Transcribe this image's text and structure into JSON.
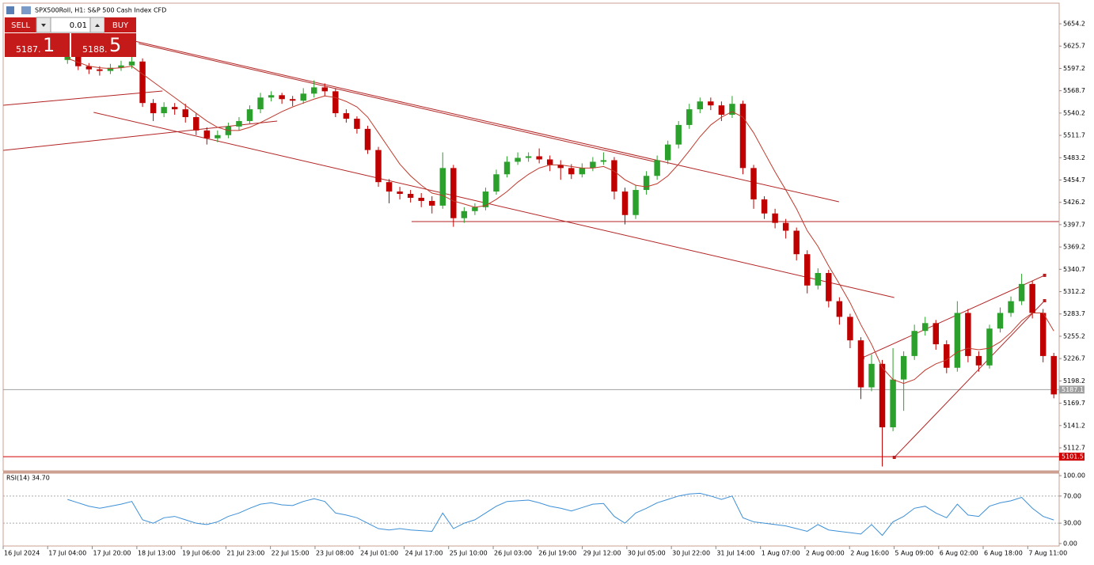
{
  "header": {
    "symbol": "SPX500Roll, H1:  S&P 500 Cash Index CFD"
  },
  "trade_panel": {
    "sell": "SELL",
    "buy": "BUY",
    "volume": "0.01",
    "sell_price": "5187.",
    "sell_pips": "1",
    "buy_price": "5188.",
    "buy_pips": "5"
  },
  "chart_data": [
    {
      "type": "candlestick",
      "xlim": [
        -6,
        92.5
      ],
      "ylim": [
        5083.4,
        5680.5
      ],
      "yticks": [
        5654.2,
        5625.7,
        5597.2,
        5568.7,
        5540.2,
        5511.7,
        5483.2,
        5454.7,
        5426.2,
        5397.7,
        5369.2,
        5340.7,
        5312.2,
        5283.7,
        5255.2,
        5226.7,
        5198.2,
        5169.7,
        5141.2,
        5112.7
      ],
      "xticks": [
        {
          "value": -6,
          "label": "16 Jul 2024"
        },
        {
          "value": -1.85,
          "label": "17 Jul 04:00"
        },
        {
          "value": 2.31,
          "label": "17 Jul 20:00"
        },
        {
          "value": 6.47,
          "label": "18 Jul 13:00"
        },
        {
          "value": 10.62,
          "label": "19 Jul 06:00"
        },
        {
          "value": 14.78,
          "label": "21 Jul 23:00"
        },
        {
          "value": 18.93,
          "label": "22 Jul 15:00"
        },
        {
          "value": 23.09,
          "label": "23 Jul 08:00"
        },
        {
          "value": 27.24,
          "label": "24 Jul 01:00"
        },
        {
          "value": 31.4,
          "label": "24 Jul 17:00"
        },
        {
          "value": 35.55,
          "label": "25 Jul 10:00"
        },
        {
          "value": 39.71,
          "label": "26 Jul 03:00"
        },
        {
          "value": 43.86,
          "label": "26 Jul 19:00"
        },
        {
          "value": 48.02,
          "label": "29 Jul 12:00"
        },
        {
          "value": 52.17,
          "label": "30 Jul 05:00"
        },
        {
          "value": 56.33,
          "label": "30 Jul 22:00"
        },
        {
          "value": 60.48,
          "label": "31 Jul 14:00"
        },
        {
          "value": 64.64,
          "label": "1 Aug 07:00"
        },
        {
          "value": 68.79,
          "label": "2 Aug 00:00"
        },
        {
          "value": 72.95,
          "label": "2 Aug 16:00"
        },
        {
          "value": 77.1,
          "label": "5 Aug 09:00"
        },
        {
          "value": 81.26,
          "label": "6 Aug 02:00"
        },
        {
          "value": 85.41,
          "label": "6 Aug 18:00"
        },
        {
          "value": 89.57,
          "label": "7 Aug 11:00"
        }
      ],
      "up_color": "#2ca02c",
      "down_color": "#c00000",
      "open": [
        5608,
        5612,
        5600,
        5596,
        5594,
        5598,
        5601,
        5606,
        5553,
        5540,
        5548,
        5545,
        5535,
        5518,
        5508,
        5512,
        5523,
        5530,
        5545,
        5560,
        5563,
        5558,
        5556,
        5565,
        5573,
        5568,
        5540,
        5533,
        5520,
        5493,
        5452,
        5440,
        5437,
        5432,
        5428,
        5422,
        5470,
        5406,
        5415,
        5420,
        5440,
        5462,
        5478,
        5483,
        5485,
        5481,
        5474,
        5470,
        5462,
        5470,
        5478,
        5480,
        5440,
        5410,
        5442,
        5460,
        5480,
        5500,
        5525,
        5545,
        5555,
        5550,
        5538,
        5552,
        5470,
        5430,
        5412,
        5400,
        5390,
        5360,
        5320,
        5336,
        5300,
        5280,
        5250,
        5190,
        5220,
        5139,
        5200,
        5230,
        5262,
        5272,
        5245,
        5215,
        5285,
        5230,
        5218,
        5265,
        5285,
        5300,
        5322,
        5285,
        5230
      ],
      "high": [
        5620,
        5616,
        5604,
        5600,
        5603,
        5607,
        5615,
        5610,
        5558,
        5554,
        5553,
        5552,
        5540,
        5522,
        5518,
        5528,
        5535,
        5550,
        5566,
        5568,
        5566,
        5562,
        5572,
        5582,
        5578,
        5572,
        5545,
        5536,
        5524,
        5497,
        5456,
        5446,
        5442,
        5438,
        5434,
        5490,
        5474,
        5420,
        5425,
        5445,
        5468,
        5485,
        5490,
        5490,
        5495,
        5486,
        5480,
        5475,
        5476,
        5484,
        5490,
        5484,
        5445,
        5448,
        5466,
        5486,
        5505,
        5530,
        5552,
        5560,
        5560,
        5555,
        5562,
        5556,
        5474,
        5434,
        5418,
        5405,
        5394,
        5365,
        5342,
        5340,
        5305,
        5284,
        5254,
        5232,
        5225,
        5240,
        5236,
        5270,
        5280,
        5276,
        5250,
        5300,
        5290,
        5236,
        5270,
        5292,
        5306,
        5335,
        5326,
        5290,
        5234
      ],
      "low": [
        5603,
        5595,
        5590,
        5588,
        5590,
        5594,
        5597,
        5548,
        5530,
        5535,
        5538,
        5528,
        5512,
        5500,
        5503,
        5508,
        5518,
        5526,
        5540,
        5555,
        5552,
        5549,
        5552,
        5560,
        5562,
        5535,
        5528,
        5514,
        5488,
        5446,
        5425,
        5430,
        5426,
        5420,
        5412,
        5418,
        5395,
        5400,
        5410,
        5416,
        5436,
        5458,
        5474,
        5478,
        5476,
        5466,
        5455,
        5456,
        5458,
        5466,
        5474,
        5430,
        5398,
        5405,
        5436,
        5455,
        5475,
        5495,
        5520,
        5540,
        5544,
        5530,
        5534,
        5462,
        5418,
        5405,
        5393,
        5380,
        5352,
        5310,
        5315,
        5292,
        5270,
        5240,
        5175,
        5185,
        5089,
        5134,
        5160,
        5225,
        5256,
        5238,
        5208,
        5210,
        5222,
        5210,
        5214,
        5260,
        5280,
        5295,
        5278,
        5222,
        5176
      ],
      "close": [
        5612,
        5600,
        5596,
        5594,
        5598,
        5601,
        5606,
        5553,
        5540,
        5548,
        5545,
        5535,
        5518,
        5508,
        5512,
        5523,
        5530,
        5545,
        5560,
        5563,
        5558,
        5556,
        5565,
        5573,
        5568,
        5540,
        5533,
        5520,
        5493,
        5452,
        5440,
        5437,
        5432,
        5428,
        5422,
        5470,
        5406,
        5415,
        5420,
        5440,
        5462,
        5478,
        5483,
        5485,
        5481,
        5474,
        5470,
        5462,
        5470,
        5478,
        5480,
        5440,
        5410,
        5442,
        5460,
        5480,
        5500,
        5525,
        5545,
        5555,
        5550,
        5538,
        5552,
        5470,
        5430,
        5412,
        5400,
        5390,
        5360,
        5320,
        5336,
        5300,
        5280,
        5250,
        5190,
        5220,
        5139,
        5200,
        5230,
        5262,
        5272,
        5245,
        5215,
        5285,
        5230,
        5218,
        5265,
        5285,
        5300,
        5322,
        5285,
        5230,
        5181
      ],
      "ma": {
        "color": "#c0392b",
        "values": [
          5610,
          5605,
          5600,
          5598,
          5597,
          5598,
          5600,
          5590,
          5580,
          5570,
          5560,
          5550,
          5540,
          5530,
          5522,
          5518,
          5518,
          5522,
          5528,
          5535,
          5542,
          5548,
          5553,
          5558,
          5562,
          5560,
          5555,
          5548,
          5535,
          5515,
          5495,
          5475,
          5460,
          5448,
          5438,
          5435,
          5428,
          5424,
          5420,
          5422,
          5430,
          5440,
          5452,
          5462,
          5470,
          5474,
          5474,
          5472,
          5470,
          5470,
          5472,
          5466,
          5455,
          5448,
          5446,
          5450,
          5460,
          5475,
          5492,
          5510,
          5525,
          5535,
          5542,
          5535,
          5515,
          5490,
          5465,
          5442,
          5418,
          5390,
          5370,
          5345,
          5322,
          5298,
          5270,
          5245,
          5215,
          5200,
          5195,
          5200,
          5212,
          5220,
          5225,
          5235,
          5240,
          5238,
          5240,
          5248,
          5260,
          5275,
          5285,
          5285,
          5262
        ]
      },
      "trend_color": "#b22222",
      "trendlines": [
        {
          "x": [
            6.27,
            71.96
          ],
          "y": [
            5632,
            5426.9
          ]
        },
        {
          "x": [
            6.64,
            54.98
          ],
          "y": [
            5629,
            5477.4
          ]
        },
        {
          "x": [
            -5.98,
            8.86
          ],
          "y": [
            5550.2,
            5568.4
          ]
        },
        {
          "x": [
            -5.98,
            19.56
          ],
          "y": [
            5492.6,
            5530
          ]
        },
        {
          "x": [
            2.44,
            77.12
          ],
          "y": [
            5541.1,
            5304.7
          ]
        },
        {
          "x": [
            32.1,
            92.47
          ],
          "y": [
            5401.7,
            5401.7
          ]
        },
        {
          "x": [
            74.17,
            91.14
          ],
          "y": [
            5227.9,
            5333
          ],
          "markers": true
        },
        {
          "x": [
            77.12,
            91.14
          ],
          "y": [
            5100.6,
            5300.6
          ],
          "markers": true
        }
      ],
      "price_lines": [
        {
          "value": 5187.1,
          "color": "#a0a0a0"
        },
        {
          "value": 5101.5,
          "color": "#d00000"
        }
      ]
    },
    {
      "type": "line",
      "title": "RSI(14) 34.70",
      "color": "#3c8fd6",
      "xlim": [
        -6,
        92.5
      ],
      "ylim": [
        -3.6,
        103.6
      ],
      "yticks": [
        {
          "value": 100,
          "label": "100.00"
        },
        {
          "value": 70,
          "label": "70.00"
        },
        {
          "value": 30,
          "label": "30.00"
        },
        {
          "value": 0,
          "label": "0.00"
        }
      ],
      "values": [
        65,
        60,
        55,
        52,
        55,
        58,
        62,
        35,
        30,
        38,
        40,
        35,
        30,
        28,
        32,
        40,
        45,
        52,
        58,
        60,
        57,
        56,
        62,
        66,
        62,
        45,
        42,
        38,
        30,
        22,
        20,
        22,
        20,
        19,
        18,
        45,
        22,
        30,
        35,
        45,
        55,
        62,
        63,
        64,
        60,
        55,
        52,
        48,
        53,
        58,
        59,
        40,
        30,
        45,
        52,
        60,
        65,
        70,
        73,
        74,
        70,
        65,
        70,
        38,
        32,
        30,
        28,
        26,
        22,
        18,
        28,
        20,
        18,
        16,
        14,
        28,
        12,
        32,
        40,
        52,
        55,
        45,
        38,
        58,
        42,
        40,
        55,
        60,
        63,
        68,
        52,
        40,
        34.7
      ]
    }
  ]
}
